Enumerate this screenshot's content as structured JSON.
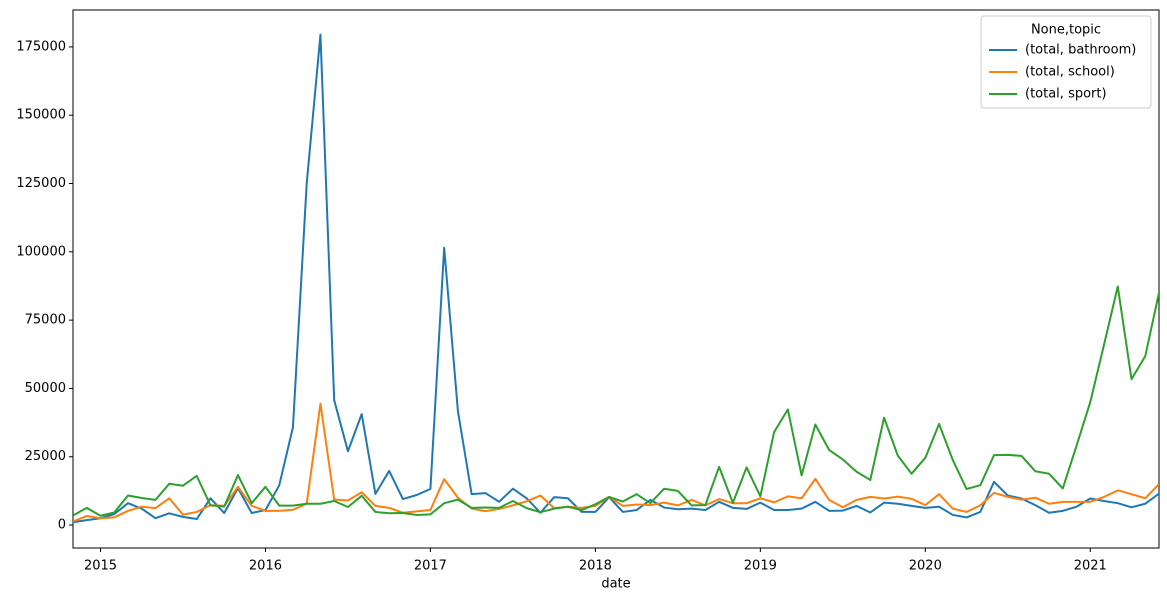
{
  "chart_data": {
    "type": "line",
    "x_label": "date",
    "categories": [
      null,
      null,
      "2015",
      null,
      null,
      null,
      null,
      null,
      null,
      null,
      null,
      null,
      null,
      null,
      "2016",
      null,
      null,
      null,
      null,
      null,
      null,
      null,
      null,
      null,
      null,
      null,
      "2017",
      null,
      null,
      null,
      null,
      null,
      null,
      null,
      null,
      null,
      null,
      null,
      "2018",
      null,
      null,
      null,
      null,
      null,
      null,
      null,
      null,
      null,
      null,
      null,
      "2019",
      null,
      null,
      null,
      null,
      null,
      null,
      null,
      null,
      null,
      null,
      null,
      "2020",
      null,
      null,
      null,
      null,
      null,
      null,
      null,
      null,
      null,
      null,
      null,
      "2021",
      null,
      null,
      null,
      null,
      null
    ],
    "legend_title": "None,topic",
    "legend": "upper right",
    "series": [
      {
        "name": "(total, bathroom)",
        "color": "#1f77b4",
        "values": [
          1000,
          1800,
          2500,
          4000,
          8000,
          6000,
          2500,
          4300,
          3000,
          2200,
          9800,
          4400,
          13500,
          4400,
          5500,
          14500,
          35800,
          125000,
          179500,
          45700,
          27000,
          40600,
          11400,
          19800,
          9500,
          11000,
          13200,
          101500,
          41700,
          11300,
          11700,
          8500,
          13300,
          9800,
          4500,
          10200,
          9800,
          4800,
          4800,
          10200,
          4800,
          5500,
          9200,
          6400,
          5800,
          6000,
          5500,
          8500,
          6300,
          5900,
          8200,
          5500,
          5500,
          6000,
          8500,
          5200,
          5300,
          7000,
          4600,
          8200,
          7800,
          7000,
          6300,
          6700,
          3700,
          2800,
          4800,
          15800,
          10800,
          9700,
          7300,
          4500,
          5200,
          6700,
          9700,
          8800,
          8000,
          6500,
          7800,
          11500
        ]
      },
      {
        "name": "(total, school)",
        "color": "#ff7f0e",
        "values": [
          1300,
          3300,
          2500,
          2800,
          5200,
          6700,
          6200,
          9800,
          3800,
          4800,
          7300,
          7000,
          14000,
          7000,
          5200,
          5200,
          5600,
          7800,
          44400,
          9300,
          9000,
          12000,
          7000,
          6300,
          4500,
          5000,
          5500,
          16800,
          10000,
          6000,
          5100,
          5900,
          7200,
          8700,
          10800,
          6200,
          6700,
          6300,
          7000,
          10300,
          7000,
          7500,
          7300,
          8200,
          7200,
          9200,
          7200,
          9500,
          8000,
          8000,
          9800,
          8300,
          10500,
          9800,
          16900,
          9200,
          6500,
          9200,
          10300,
          9700,
          10400,
          9600,
          7300,
          11300,
          6000,
          4800,
          7200,
          11800,
          10300,
          9300,
          10000,
          7800,
          8500,
          8500,
          8500,
          10300,
          12700,
          11300,
          9800,
          15000
        ]
      },
      {
        "name": "(total, sport)",
        "color": "#2ca02c",
        "values": [
          3500,
          6300,
          3400,
          4600,
          10800,
          9900,
          9200,
          15100,
          14400,
          18000,
          7200,
          6800,
          18300,
          8000,
          14000,
          7100,
          7100,
          7800,
          7800,
          8800,
          6600,
          10700,
          4800,
          4300,
          4400,
          3700,
          3900,
          8000,
          9300,
          6300,
          6400,
          6300,
          8800,
          6200,
          4700,
          6000,
          6700,
          5500,
          7600,
          10300,
          8600,
          11300,
          8000,
          13300,
          12500,
          7200,
          7300,
          21300,
          8100,
          21100,
          10500,
          34000,
          42300,
          18200,
          36800,
          27500,
          24000,
          19500,
          16500,
          39300,
          25400,
          18800,
          24600,
          37000,
          23800,
          13200,
          14600,
          25600,
          25700,
          25300,
          19700,
          18800,
          13400,
          29000,
          45000,
          66000,
          87300,
          53400,
          61800,
          85000
        ]
      }
    ],
    "ylim": [
      -8400,
      188500
    ],
    "yticks": [
      0,
      25000,
      50000,
      75000,
      100000,
      125000,
      150000,
      175000
    ]
  }
}
